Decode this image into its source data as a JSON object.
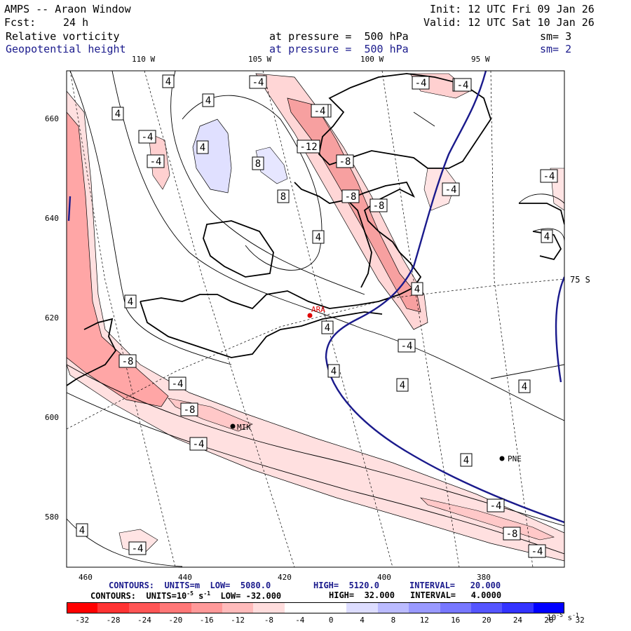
{
  "header": {
    "model": "AMPS -- Araon Window",
    "init": "Init: 12 UTC Fri 09 Jan 26",
    "fcst_label": "Fcst:",
    "fcst_value": "24 h",
    "valid": "Valid: 12 UTC Sat 10 Jan 26",
    "field1": "Relative vorticity",
    "pressure1": "at pressure =  500 hPa",
    "sm1": "sm= 3",
    "field2": "Geopotential height",
    "pressure2": "at pressure =  500 hPa",
    "sm2": "sm= 2"
  },
  "axes": {
    "top_ticks": [
      "110 W",
      "105 W",
      "100 W",
      "95 W"
    ],
    "left_ticks": [
      "660",
      "640",
      "620",
      "600",
      "580"
    ],
    "bottom_ticks": [
      "460",
      "440",
      "420",
      "400",
      "380"
    ],
    "lat_label": "75 S"
  },
  "stations": [
    {
      "id": "ARA",
      "color": "#e00000"
    },
    {
      "id": "MIK",
      "color": "#000000"
    },
    {
      "id": "PNE",
      "color": "#000000"
    }
  ],
  "contour_labels": {
    "items": [
      "4",
      "4",
      "4",
      "-4",
      "-4",
      "-4",
      "4",
      "-4",
      "-4",
      "8",
      "8",
      "-12",
      "-8",
      "-8",
      "-8",
      "-4",
      "-4",
      "-4",
      "4",
      "4",
      "4",
      "4",
      "4",
      "4",
      "4",
      "-4",
      "-4",
      "-8",
      "-4",
      "-8",
      "-4",
      "4",
      "-4",
      "-8",
      "-4",
      "4",
      "4",
      "-4",
      "-4"
    ]
  },
  "footer": {
    "line1_a": "CONTOURS:  UNITS=m  LOW=  5080.0",
    "line1_b": "HIGH=  5120.0",
    "line1_c": "INTERVAL=   20.000",
    "line2_a": "CONTOURS:  UNITS=10",
    "line2_exp": "-5",
    "line2_b": " s",
    "line2_exp2": "-1",
    "line2_c": "  LOW= -32.000",
    "line2_d": "HIGH=  32.000",
    "line2_e": "INTERVAL=   4.0000"
  },
  "colorbar": {
    "labels": [
      "-32",
      "-28",
      "-24",
      "-20",
      "-16",
      "-12",
      "-8",
      "-4",
      "0",
      "4",
      "8",
      "12",
      "16",
      "20",
      "24",
      "28",
      "32"
    ],
    "unit_base": "10",
    "unit_exp": "-5",
    "unit_s": " s",
    "unit_exp2": "-1",
    "colors": [
      "#ff0000",
      "#ff3333",
      "#ff5555",
      "#ff7777",
      "#ff9999",
      "#ffbbbb",
      "#ffdddd",
      "#ffffff",
      "#ffffff",
      "#ddddff",
      "#bbbbff",
      "#9999ff",
      "#7777ff",
      "#5555ff",
      "#3333ff",
      "#0000ff"
    ]
  }
}
